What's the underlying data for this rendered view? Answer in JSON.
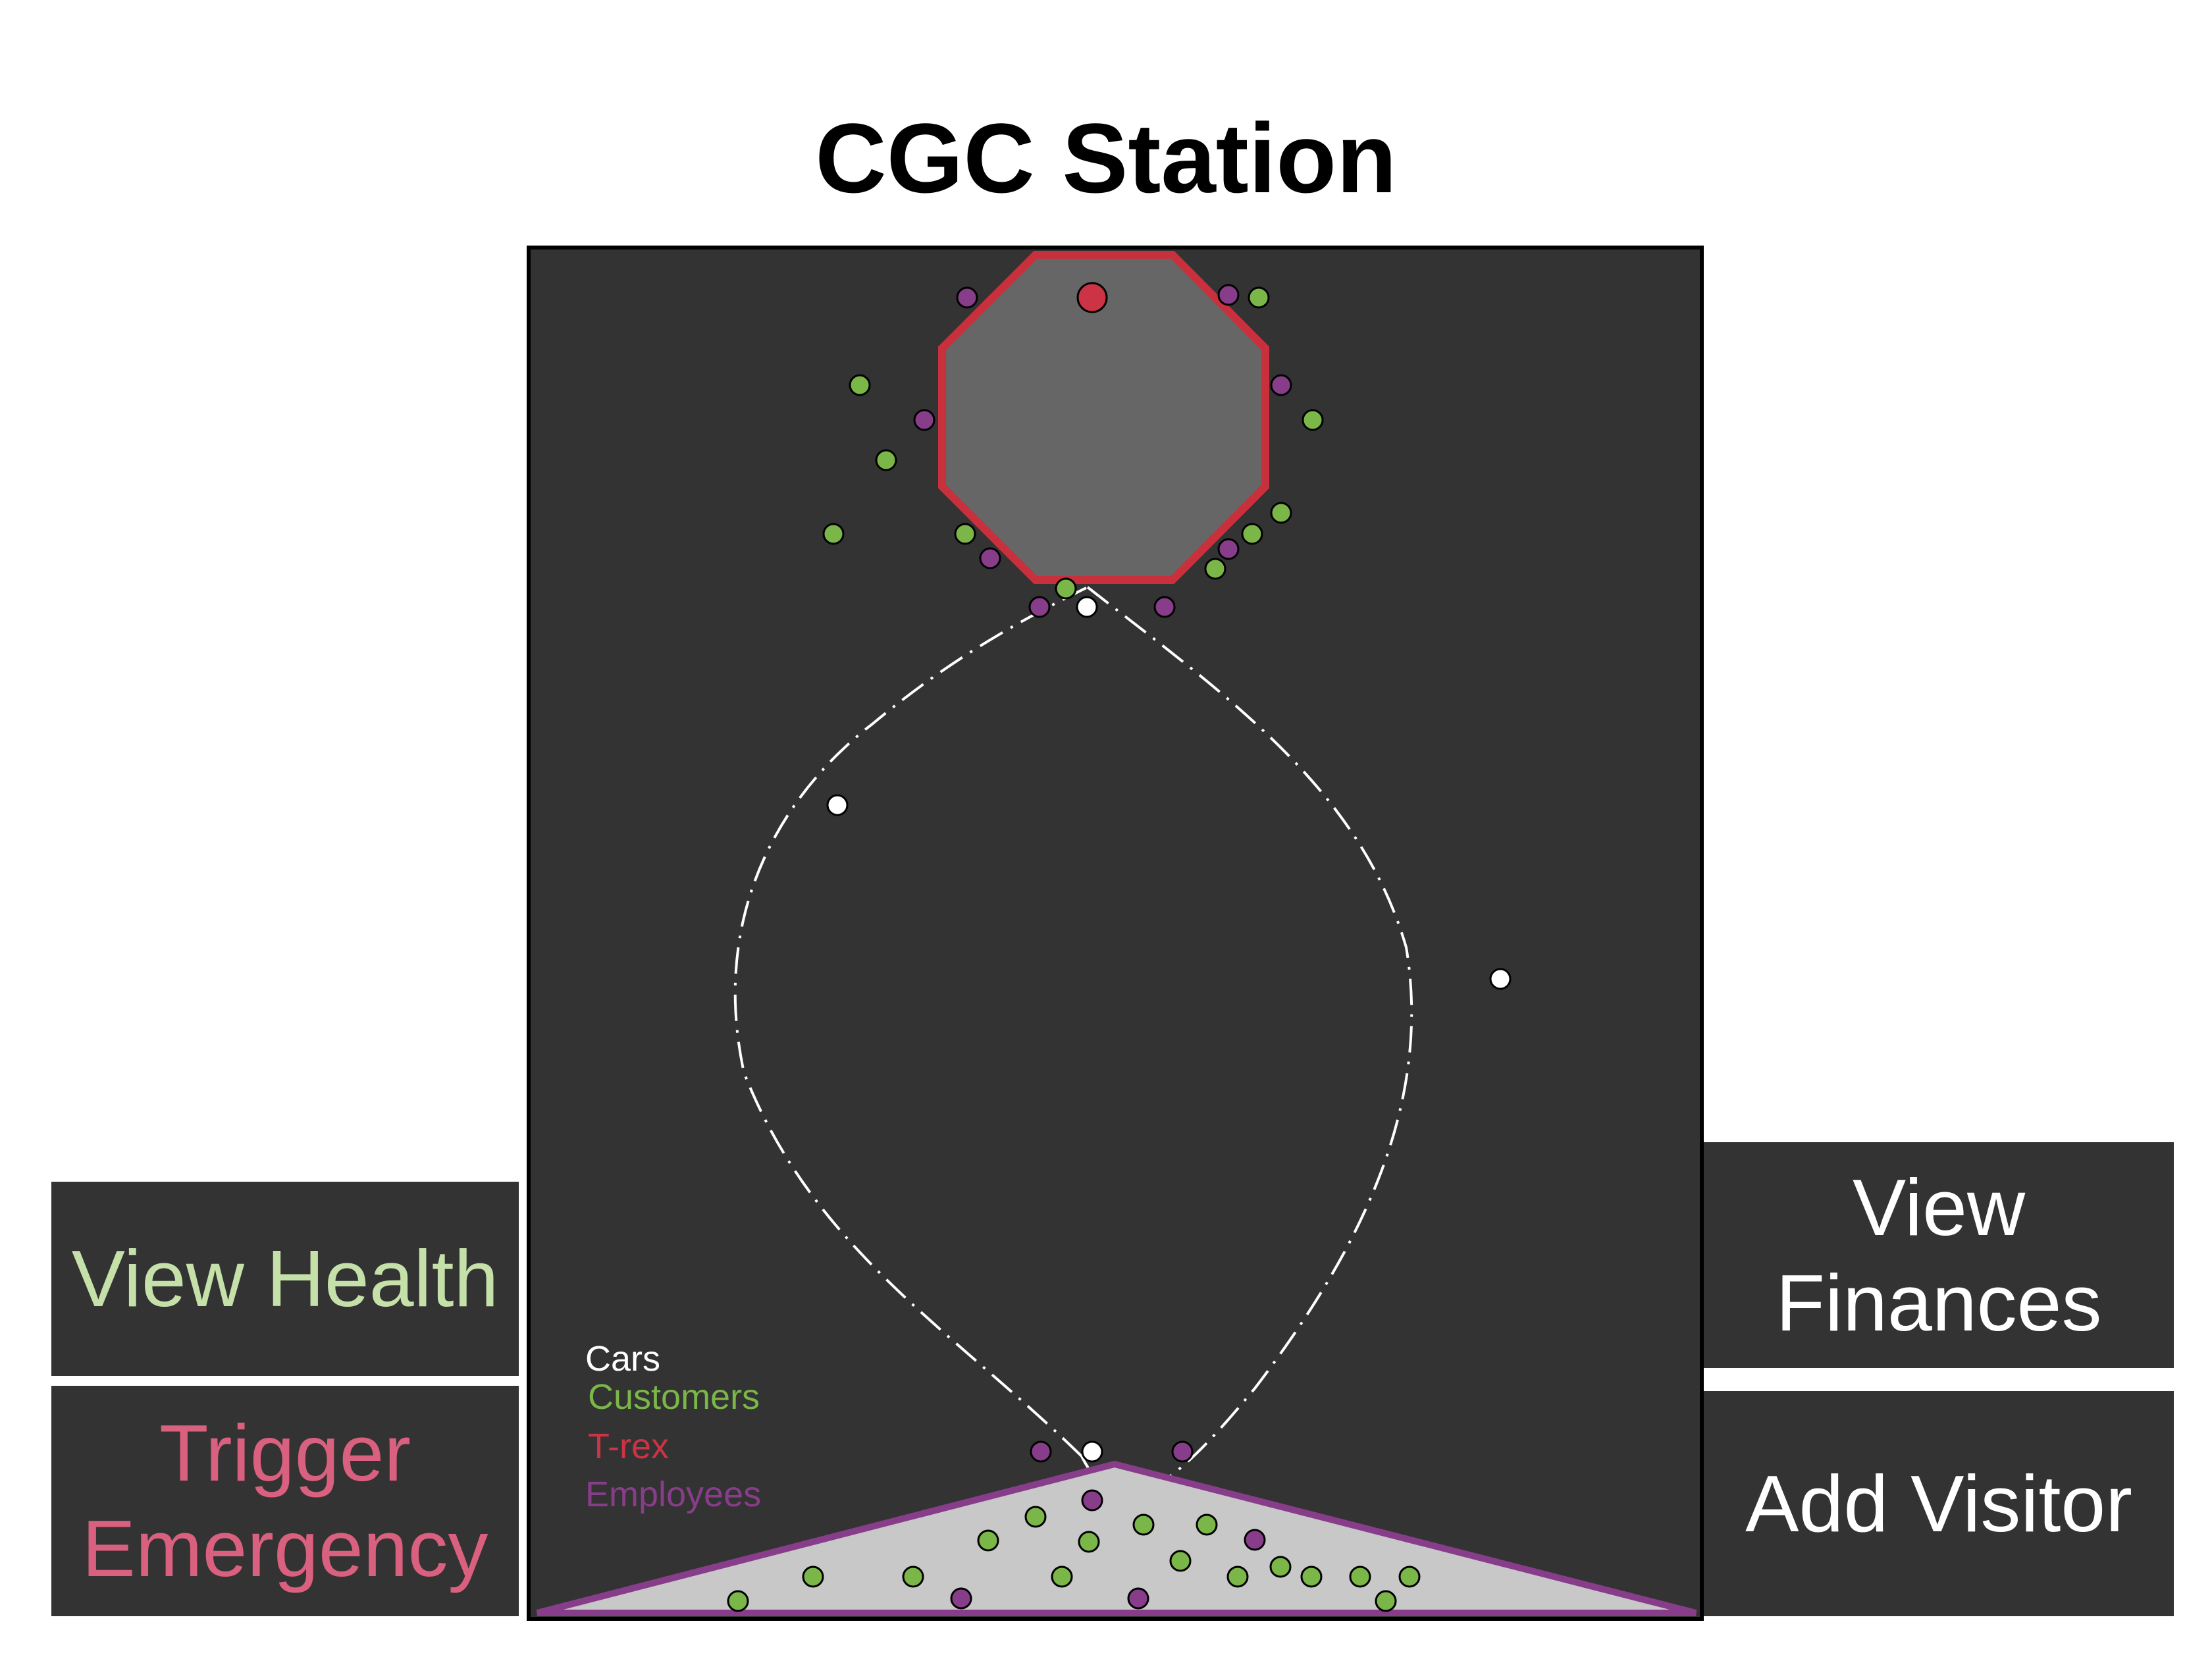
{
  "title": "CGC Station",
  "colors": {
    "panel": "#333333",
    "customers": "#7ab648",
    "trex": "#cc3344",
    "employees": "#883d8a",
    "cars": "#ffffff",
    "health_text": "#c5e0a8",
    "emergency_text": "#d9607e",
    "default_text": "#ffffff"
  },
  "legend": {
    "cars": "Cars",
    "customers": "Customers",
    "trex": "T-rex",
    "employees": "Employees"
  },
  "buttons": {
    "view_health": "View Health",
    "trigger_emergency": "Trigger\nEmergency",
    "view_finances": "View\nFinances",
    "add_visitor": "Add Visitor"
  }
}
